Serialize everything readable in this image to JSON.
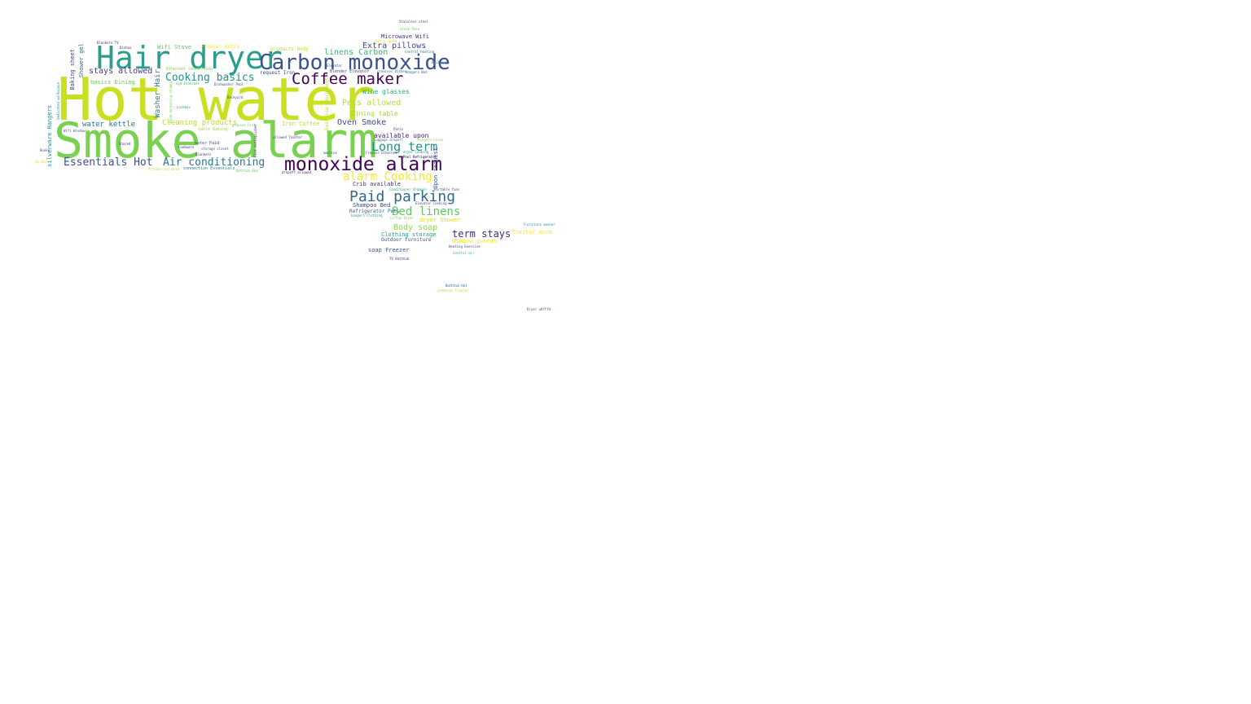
{
  "words": [
    {
      "text": "Hot water",
      "color": "#c8e020"
    },
    {
      "text": "Smoke alarm",
      "color": "#7ad151"
    },
    {
      "text": "Hair dryer",
      "color": "#2a9d8c"
    },
    {
      "text": "Carbon monoxide",
      "color": "#3b528b"
    },
    {
      "text": "monoxide alarm",
      "color": "#440154"
    },
    {
      "text": "Coffee maker",
      "color": "#440154"
    },
    {
      "text": "Paid parking",
      "color": "#31688e"
    },
    {
      "text": "Long term",
      "color": "#21918c"
    },
    {
      "text": "Bed linens",
      "color": "#5ec962"
    },
    {
      "text": "alarm Cooking",
      "color": "#fde725"
    },
    {
      "text": "term stays",
      "color": "#482878"
    },
    {
      "text": "Cooking basics",
      "color": "#21918c"
    },
    {
      "text": "Air conditioning",
      "color": "#2a788e"
    },
    {
      "text": "Essentials Hot",
      "color": "#3b528b"
    },
    {
      "text": "Extra pillows",
      "color": "#3e4989"
    },
    {
      "text": "linens Carbon",
      "color": "#35b779"
    },
    {
      "text": "stays allowed",
      "color": "#443983"
    },
    {
      "text": "Pets allowed",
      "color": "#b5de2b"
    },
    {
      "text": "Body soap",
      "color": "#90d743"
    },
    {
      "text": "Oven Smoke",
      "color": "#3e4989"
    },
    {
      "text": "water kettle",
      "color": "#2c728e"
    },
    {
      "text": "Cleaning products",
      "color": "#b5de2b"
    },
    {
      "text": "Dining table",
      "color": "#a0da39"
    },
    {
      "text": "Wine glasses",
      "color": "#27ad81"
    },
    {
      "text": "Iron Coffee",
      "color": "#b5de2b"
    },
    {
      "text": "available upon",
      "color": "#482475"
    },
    {
      "text": "Crib available",
      "color": "#46327e"
    },
    {
      "text": "Clothing storage",
      "color": "#1fa187"
    },
    {
      "text": "Microwave Wifi",
      "color": "#46327e"
    },
    {
      "text": "Wifi Stove",
      "color": "#5ec962"
    },
    {
      "text": "basics Dining",
      "color": "#6ece58"
    },
    {
      "text": "Shampoo Bed",
      "color": "#3e4989"
    },
    {
      "text": "dryer Shower",
      "color": "#d2e21b"
    },
    {
      "text": "soap Freezer",
      "color": "#3b528b"
    },
    {
      "text": "Outdoor furniture",
      "color": "#3b528b"
    },
    {
      "text": "Refrigerator Pets",
      "color": "#31688e"
    },
    {
      "text": "Window guards",
      "color": "#fde725"
    },
    {
      "text": "Toaster Wine",
      "color": "#fde725"
    },
    {
      "text": "request Iron",
      "color": "#3e4989"
    },
    {
      "text": "products Body",
      "color": "#bddf26"
    },
    {
      "text": "Ethernet connection",
      "color": "#7ad151"
    },
    {
      "text": "Freezer Extra",
      "color": "#fde725"
    },
    {
      "text": "connection Essentials",
      "color": "#2c728e"
    },
    {
      "text": "table Baking",
      "color": "#a0da39"
    },
    {
      "text": "water Paid",
      "color": "#3b528b"
    },
    {
      "text": "Blender Elevator",
      "color": "#3e4989"
    },
    {
      "text": "silverware Hangers",
      "color": "#21918c"
    },
    {
      "text": "Baking sheet",
      "color": "#3e4989"
    },
    {
      "text": "Shower gel",
      "color": "#2c728e"
    },
    {
      "text": "Washer Hair",
      "color": "#287c8e"
    },
    {
      "text": "Upon request",
      "color": "#3b528b"
    },
    {
      "text": "Exercise equipment",
      "color": "#b5de2b"
    },
    {
      "text": "Stainless steel",
      "color": "#3e4989"
    },
    {
      "text": "alarm Oven",
      "color": "#5ec962"
    },
    {
      "text": "Backyard",
      "color": "#3b528b"
    },
    {
      "text": "Extra space",
      "color": "#d2e21b"
    },
    {
      "text": "Central heating",
      "color": "#2a788e"
    },
    {
      "text": "Dishes",
      "color": "#482475"
    },
    {
      "text": "Blankets TV",
      "color": "#46327e"
    },
    {
      "text": "Dishwasher Pool",
      "color": "#3e4989"
    },
    {
      "text": "Lockbox",
      "color": "#22a884"
    },
    {
      "text": "Furniture washer",
      "color": "#21918c"
    },
    {
      "text": "Central air",
      "color": "#35b779"
    },
    {
      "text": "Heating Exercise",
      "color": "#3e4989"
    },
    {
      "text": "TV Bathtub",
      "color": "#46327e"
    },
    {
      "text": "Bathtub Hot",
      "color": "#31688e"
    },
    {
      "text": "premises Toaster",
      "color": "#b5de2b"
    },
    {
      "text": "Dryer ußfffd",
      "color": "#3e4989"
    },
    {
      "text": "Portable fans",
      "color": "#3e4989"
    },
    {
      "text": "Conditioner Shampoo",
      "color": "#22a884"
    },
    {
      "text": "Elevator Cooking",
      "color": "#3e4989"
    },
    {
      "text": "hangers Clothing",
      "color": "#1fa187"
    },
    {
      "text": "Coffee Dryer",
      "color": "#7ad151"
    },
    {
      "text": "luggage dropoff",
      "color": "#2c728e"
    },
    {
      "text": "allowed Toaster",
      "color": "#46327e"
    },
    {
      "text": "dropoff allowed",
      "color": "#482878"
    },
    {
      "text": "Bathtub Bed",
      "color": "#5ec962"
    },
    {
      "text": "machine",
      "color": "#3b528b"
    },
    {
      "text": "Shared",
      "color": "#46327e"
    },
    {
      "text": "Cookware",
      "color": "#46327e"
    },
    {
      "text": "storage closet",
      "color": "#3b528b"
    },
    {
      "text": "Blankets",
      "color": "#46327e"
    },
    {
      "text": "Fire extinguisher",
      "color": "#46327e"
    },
    {
      "text": "Gym Ethernet",
      "color": "#35b779"
    },
    {
      "text": "glasses Crib",
      "color": "#5ec962"
    },
    {
      "text": "Dedicated workspace",
      "color": "#21918c"
    },
    {
      "text": "Wifi Window",
      "color": "#3b528b"
    },
    {
      "text": "Books",
      "color": "#3e4989"
    },
    {
      "text": "Building",
      "color": "#2c728e"
    },
    {
      "text": "Hangers Bed",
      "color": "#2c728e"
    },
    {
      "text": "Patio",
      "color": "#3e4989"
    },
    {
      "text": "Pool Refrigerator",
      "color": "#3e4989"
    },
    {
      "text": "premises Dishes",
      "color": "#2c728e"
    },
    {
      "text": "Hangers Linen",
      "color": "#90d743"
    },
    {
      "text": "Private entrance",
      "color": "#b5de2b"
    },
    {
      "text": "Freezer Ethernet",
      "color": "#3e4989"
    },
    {
      "text": "Room-darkening shades",
      "color": "#6ece58"
    },
    {
      "text": "dryer Cooking",
      "color": "#21918c"
    },
    {
      "text": "Elevator",
      "color": "#3e4989"
    },
    {
      "text": "Tv Dvr",
      "color": "#d2e21b"
    },
    {
      "text": "Pool Refrigerator",
      "color": "#3e4989"
    }
  ]
}
